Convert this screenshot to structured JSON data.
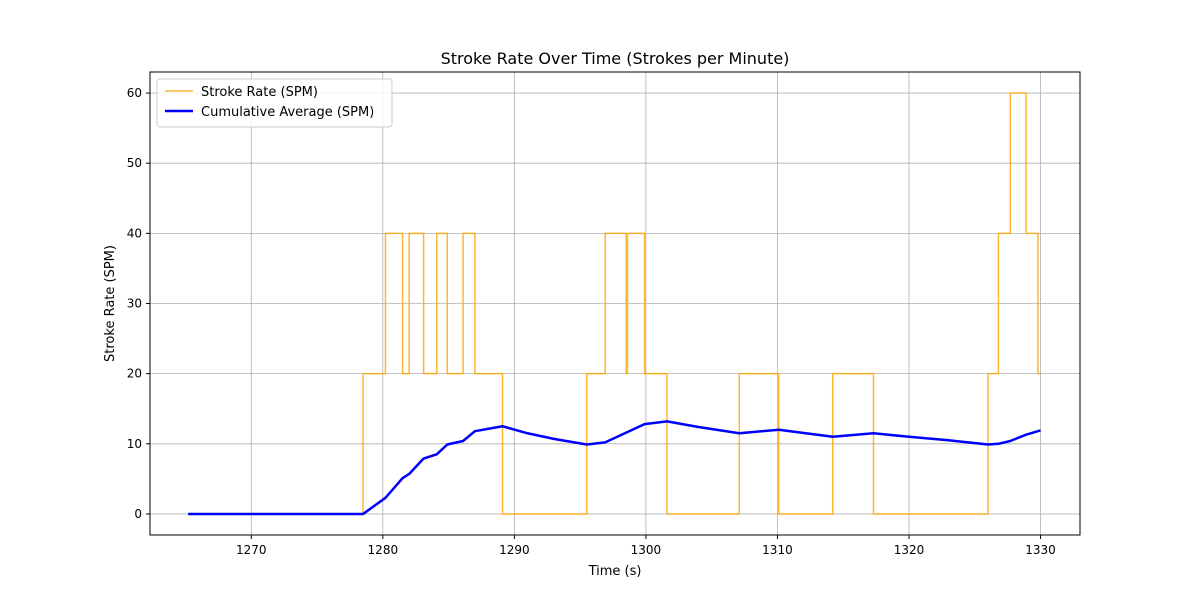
{
  "chart_data": {
    "type": "line",
    "title": "Stroke Rate Over Time (Strokes per Minute)",
    "xlabel": "Time (s)",
    "ylabel": "Stroke Rate (SPM)",
    "xlim": [
      1262.3,
      1333.0
    ],
    "ylim": [
      -3,
      63
    ],
    "xticks": [
      1270,
      1280,
      1290,
      1300,
      1310,
      1320,
      1330
    ],
    "yticks": [
      0,
      10,
      20,
      30,
      40,
      50,
      60
    ],
    "grid": true,
    "legend_position": "top-left",
    "series": [
      {
        "name": "Stroke Rate (SPM)",
        "style": "step",
        "color": "#FFA500",
        "x": [
          1265.2,
          1278.5,
          1278.5,
          1280.2,
          1280.2,
          1281.5,
          1281.5,
          1282.0,
          1282.0,
          1283.1,
          1283.1,
          1284.1,
          1284.1,
          1284.9,
          1284.9,
          1286.1,
          1286.1,
          1287.0,
          1287.0,
          1289.1,
          1289.1,
          1295.5,
          1295.5,
          1296.9,
          1296.9,
          1298.4,
          1298.4,
          1298.5,
          1298.5,
          1298.6,
          1298.6,
          1299.9,
          1299.9,
          1301.6,
          1301.6,
          1307.1,
          1307.1,
          1310.1,
          1310.1,
          1314.2,
          1314.2,
          1317.3,
          1317.3,
          1326.0,
          1326.0,
          1326.8,
          1326.8,
          1327.7,
          1327.7,
          1328.9,
          1328.9,
          1329.8,
          1329.8,
          1330.0
        ],
        "y": [
          0,
          0,
          20,
          20,
          40,
          40,
          20,
          20,
          40,
          40,
          20,
          20,
          40,
          40,
          20,
          20,
          40,
          40,
          20,
          20,
          0,
          0,
          20,
          20,
          40,
          40,
          40,
          40,
          20,
          20,
          40,
          40,
          20,
          20,
          0,
          0,
          20,
          20,
          0,
          0,
          20,
          20,
          0,
          0,
          20,
          20,
          40,
          40,
          60,
          60,
          40,
          40,
          20,
          20
        ]
      },
      {
        "name": "Cumulative Average (SPM)",
        "style": "line",
        "color": "#0000FF",
        "x": [
          1265.2,
          1278.5,
          1280.2,
          1281.5,
          1282.0,
          1283.1,
          1284.1,
          1284.9,
          1286.1,
          1287.0,
          1289.1,
          1291.0,
          1293.0,
          1295.5,
          1296.9,
          1298.5,
          1299.9,
          1301.6,
          1304.0,
          1307.1,
          1310.1,
          1314.2,
          1317.3,
          1320.0,
          1323.0,
          1326.0,
          1326.8,
          1327.7,
          1328.9,
          1329.8,
          1330.0
        ],
        "y": [
          0,
          0,
          2.3,
          5.1,
          5.7,
          7.9,
          8.5,
          9.9,
          10.4,
          11.8,
          12.5,
          11.5,
          10.7,
          9.9,
          10.2,
          11.6,
          12.8,
          13.2,
          12.4,
          11.5,
          12.0,
          11.0,
          11.5,
          11.0,
          10.5,
          9.9,
          10.0,
          10.4,
          11.3,
          11.8,
          11.9
        ]
      }
    ]
  }
}
